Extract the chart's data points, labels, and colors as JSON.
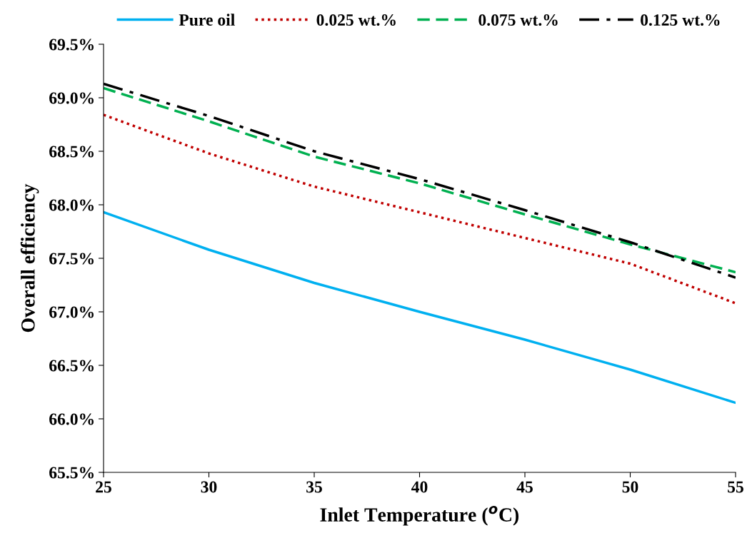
{
  "chart_data": {
    "type": "line",
    "xlabel": "Inlet Temperature ($^{o}$C)",
    "ylabel": "Overall efficiency",
    "x": [
      25,
      30,
      35,
      40,
      45,
      50,
      55
    ],
    "series": [
      {
        "name": "Pure oil",
        "color": "#00b0f0",
        "line_style": "solid",
        "values": [
          67.93,
          67.58,
          67.27,
          67.0,
          66.74,
          66.46,
          66.15
        ]
      },
      {
        "name": "0.025 wt.%",
        "color": "#c00000",
        "line_style": "dotted",
        "values": [
          68.84,
          68.48,
          68.17,
          67.93,
          67.69,
          67.45,
          67.08
        ]
      },
      {
        "name": "0.075 wt.%",
        "color": "#00b050",
        "line_style": "dashed",
        "values": [
          69.09,
          68.78,
          68.45,
          68.2,
          67.91,
          67.63,
          67.37
        ]
      },
      {
        "name": "0.125 wt.%",
        "color": "#000000",
        "line_style": "dashdot",
        "values": [
          69.13,
          68.83,
          68.5,
          68.24,
          67.95,
          67.65,
          67.32
        ]
      }
    ],
    "xlim": [
      25,
      55
    ],
    "xticks": [
      25,
      30,
      35,
      40,
      45,
      50,
      55
    ],
    "ylim": [
      65.5,
      69.5
    ],
    "yticks": [
      {
        "value": 65.5,
        "label": "65.5%"
      },
      {
        "value": 66.0,
        "label": "66.0%"
      },
      {
        "value": 66.5,
        "label": "66.5%"
      },
      {
        "value": 67.0,
        "label": "67.0%"
      },
      {
        "value": 67.5,
        "label": "67.5%"
      },
      {
        "value": 68.0,
        "label": "68.0%"
      },
      {
        "value": 68.5,
        "label": "68.5%"
      },
      {
        "value": 69.0,
        "label": "69.0%"
      },
      {
        "value": 69.5,
        "label": "69.5%"
      }
    ],
    "grid": false,
    "legend": "top",
    "marker": "none"
  }
}
